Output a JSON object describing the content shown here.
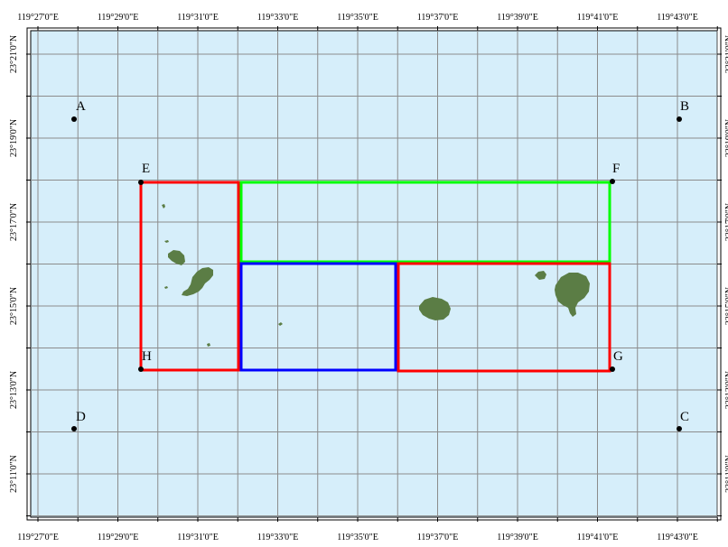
{
  "map": {
    "background_color": "#d6eefa",
    "grid_color": "#8c8c8c",
    "land_color": "#5b7d45",
    "x_labels": [
      "119°27'0\"E",
      "119°29'0\"E",
      "119°31'0\"E",
      "119°33'0\"E",
      "119°35'0\"E",
      "119°37'0\"E",
      "119°39'0\"E",
      "119°41'0\"E",
      "119°43'0\"E"
    ],
    "y_labels": [
      "23°21'0\"N",
      "23°19'0\"N",
      "23°17'0\"N",
      "23°15'0\"N",
      "23°13'0\"N",
      "23°11'0\"N"
    ],
    "points": [
      {
        "label": "A",
        "name": "point-a"
      },
      {
        "label": "B",
        "name": "point-b"
      },
      {
        "label": "C",
        "name": "point-c"
      },
      {
        "label": "D",
        "name": "point-d"
      },
      {
        "label": "E",
        "name": "point-e"
      },
      {
        "label": "F",
        "name": "point-f"
      },
      {
        "label": "G",
        "name": "point-g"
      },
      {
        "label": "H",
        "name": "point-h"
      }
    ],
    "regions": [
      {
        "name": "red-region-west",
        "color": "#ff0000"
      },
      {
        "name": "green-region-north",
        "color": "#00ff00"
      },
      {
        "name": "blue-region-center",
        "color": "#0000ff"
      },
      {
        "name": "red-region-east",
        "color": "#ff0000"
      }
    ]
  }
}
